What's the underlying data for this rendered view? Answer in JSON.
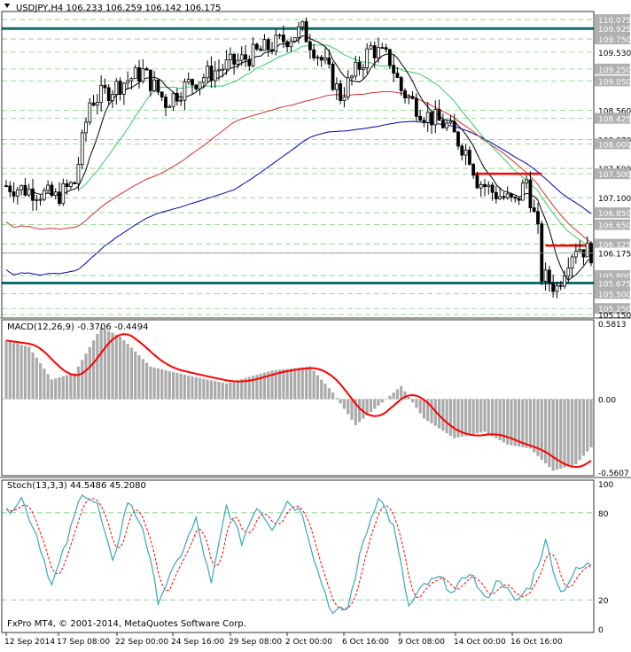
{
  "colors": {
    "background": "#ffffff",
    "axis": "#000000",
    "grid": "#7fd07f",
    "candle": "#000000",
    "ma_fast": "#000000",
    "ma_green": "#33cc66",
    "ma_mid": "#d23030",
    "ma_slow": "#0000b0",
    "teal_line": "#0e6f6f",
    "red_line": "#ff0000",
    "label_fill": "#b0b0b0",
    "current_label_fill": "#ffffff",
    "macd_hist": "#aaaaaa",
    "macd_signal": "#ff0000",
    "stoch_main": "#3aa6b8",
    "stoch_signal": "#ff0000",
    "separator": "#a0a0a0"
  },
  "chart_data": [
    {
      "type": "candlestick",
      "title": "USDJPY,H4  106.233 106.259 106.142 106.175",
      "ylim": [
        105.15,
        110.15
      ],
      "price_labels": [
        "110.075",
        "109.925",
        "109.750",
        "109.530",
        "109.250",
        "109.050",
        "108.560",
        "108.425",
        "108.070",
        "108.000",
        "107.590",
        "107.500",
        "107.100",
        "106.850",
        "106.650",
        "106.325",
        "106.175",
        "105.800",
        "105.675",
        "105.500",
        "105.250",
        "105.150"
      ],
      "teal_lines": [
        109.925,
        105.675
      ],
      "red_segments": [
        {
          "from_index": 123,
          "to_index": 141,
          "price": 107.5
        },
        {
          "from_index": 142,
          "to_index": 153,
          "price": 106.3
        }
      ],
      "current_price": 106.175,
      "x_labels": [
        "12 Sep 2014",
        "17 Sep 08:00",
        "22 Sep 00:00",
        "24 Sep 16:00",
        "29 Sep 08:00",
        "2 Oct 00:00",
        "6 Oct 16:00",
        "9 Oct 08:00",
        "14 Oct 00:00",
        "16 Oct 16:00"
      ],
      "footer": "FxPro MT4, © 2001-2014, MetaQuotes Software Corp."
    },
    {
      "type": "bar",
      "title": "MACD(12,26,9) -0.3706 -0.4494",
      "ylim": [
        -0.5607,
        0.5813
      ],
      "tick_labels": [
        "0.5813",
        "0.00",
        "-0.5607"
      ],
      "series": [
        {
          "name": "MACD"
        },
        {
          "name": "Signal"
        }
      ]
    },
    {
      "type": "line",
      "title": "Stoch(13,3,3) 44.5486 45.2080",
      "ylim": [
        0,
        100
      ],
      "tick_labels": [
        "100",
        "80",
        "20",
        "0"
      ],
      "series": [
        {
          "name": "Main"
        },
        {
          "name": "Signal"
        }
      ]
    }
  ]
}
